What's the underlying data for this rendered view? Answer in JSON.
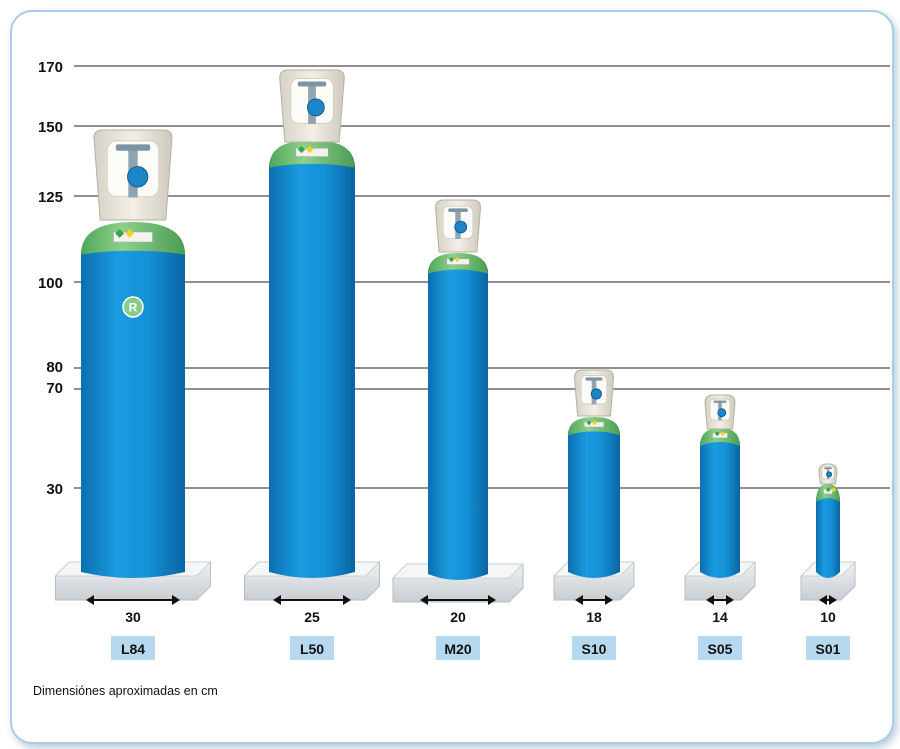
{
  "scale_ticks": [
    "170",
    "150",
    "125",
    "100",
    "80",
    "70",
    "30"
  ],
  "cylinders": [
    {
      "code": "L84",
      "diameter": "30",
      "badge": "R"
    },
    {
      "code": "L50",
      "diameter": "25"
    },
    {
      "code": "M20",
      "diameter": "20"
    },
    {
      "code": "S10",
      "diameter": "18"
    },
    {
      "code": "S05",
      "diameter": "14"
    },
    {
      "code": "S01",
      "diameter": "10"
    }
  ],
  "footnote": "Dimensiónes aproximadas en cm",
  "colors": {
    "cylinder_body": "#1590d4",
    "shoulder": "#7fc67b",
    "code_label_bg": "#b6d9ef",
    "frame_border": "#a9cde6"
  }
}
